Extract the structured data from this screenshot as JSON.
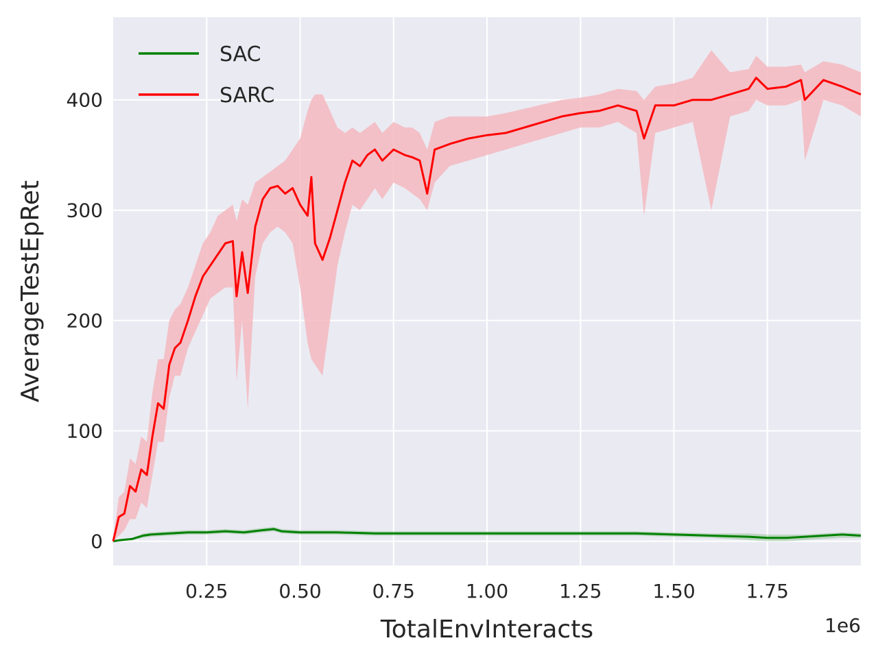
{
  "chart_data": {
    "type": "line",
    "title": "",
    "xlabel": "TotalEnvInteracts",
    "ylabel": "AverageTestEpRet",
    "x_scale_label": "1e6",
    "xlim": [
      0.0,
      2.0
    ],
    "ylim": [
      -22,
      475
    ],
    "x_ticks": [
      0.25,
      0.5,
      0.75,
      1.0,
      1.25,
      1.5,
      1.75
    ],
    "x_tick_labels": [
      "0.25",
      "0.50",
      "0.75",
      "1.00",
      "1.25",
      "1.50",
      "1.75"
    ],
    "y_ticks": [
      0,
      100,
      200,
      300,
      400
    ],
    "y_tick_labels": [
      "0",
      "100",
      "200",
      "300",
      "400"
    ],
    "grid": true,
    "legend_position": "top-left",
    "background_color": "#eaeaf2",
    "series": [
      {
        "name": "SAC",
        "color": "#008000",
        "x": [
          0.0,
          0.02,
          0.05,
          0.08,
          0.1,
          0.15,
          0.2,
          0.25,
          0.3,
          0.35,
          0.4,
          0.43,
          0.45,
          0.5,
          0.55,
          0.6,
          0.7,
          0.8,
          0.9,
          1.0,
          1.1,
          1.2,
          1.3,
          1.4,
          1.5,
          1.6,
          1.7,
          1.75,
          1.8,
          1.85,
          1.9,
          1.95,
          2.0
        ],
        "y": [
          0,
          1,
          2,
          5,
          6,
          7,
          8,
          8,
          9,
          8,
          10,
          11,
          9,
          8,
          8,
          8,
          7,
          7,
          7,
          7,
          7,
          7,
          7,
          7,
          6,
          5,
          4,
          3,
          3,
          4,
          5,
          6,
          5
        ],
        "band_low": [
          0,
          0,
          1,
          3,
          4,
          5,
          6,
          6,
          7,
          6,
          8,
          9,
          7,
          6,
          6,
          6,
          5,
          5,
          5,
          5,
          5,
          5,
          5,
          5,
          4,
          3,
          1,
          0,
          0,
          1,
          2,
          3,
          3
        ],
        "band_high": [
          1,
          2,
          3,
          7,
          8,
          9,
          10,
          10,
          11,
          10,
          12,
          13,
          11,
          10,
          10,
          10,
          9,
          9,
          9,
          9,
          9,
          9,
          9,
          9,
          8,
          7,
          7,
          6,
          6,
          6,
          7,
          8,
          7
        ]
      },
      {
        "name": "SARC",
        "color": "#ff0000",
        "band_color": "#f4b8c0",
        "x": [
          0.0,
          0.015,
          0.03,
          0.045,
          0.06,
          0.075,
          0.09,
          0.105,
          0.12,
          0.135,
          0.15,
          0.165,
          0.18,
          0.2,
          0.22,
          0.24,
          0.26,
          0.28,
          0.3,
          0.32,
          0.33,
          0.345,
          0.36,
          0.38,
          0.4,
          0.42,
          0.44,
          0.46,
          0.48,
          0.5,
          0.52,
          0.53,
          0.54,
          0.56,
          0.58,
          0.6,
          0.62,
          0.64,
          0.66,
          0.68,
          0.7,
          0.72,
          0.75,
          0.78,
          0.8,
          0.82,
          0.84,
          0.86,
          0.9,
          0.95,
          1.0,
          1.05,
          1.1,
          1.15,
          1.2,
          1.25,
          1.3,
          1.35,
          1.4,
          1.42,
          1.45,
          1.5,
          1.55,
          1.6,
          1.65,
          1.7,
          1.72,
          1.75,
          1.8,
          1.84,
          1.85,
          1.9,
          1.95,
          2.0
        ],
        "y": [
          0,
          22,
          25,
          50,
          45,
          65,
          60,
          95,
          125,
          120,
          160,
          175,
          180,
          200,
          222,
          240,
          250,
          260,
          270,
          272,
          222,
          262,
          225,
          285,
          310,
          320,
          322,
          315,
          320,
          305,
          295,
          330,
          270,
          255,
          275,
          300,
          325,
          345,
          340,
          350,
          355,
          345,
          355,
          350,
          348,
          345,
          315,
          355,
          360,
          365,
          368,
          370,
          375,
          380,
          385,
          388,
          390,
          395,
          390,
          365,
          395,
          395,
          400,
          400,
          405,
          410,
          420,
          410,
          412,
          418,
          400,
          418,
          412,
          405
        ],
        "band_low": [
          0,
          5,
          10,
          20,
          20,
          35,
          30,
          60,
          90,
          90,
          130,
          150,
          150,
          175,
          190,
          205,
          220,
          225,
          230,
          230,
          145,
          200,
          120,
          240,
          270,
          280,
          285,
          280,
          270,
          230,
          180,
          165,
          160,
          150,
          200,
          250,
          280,
          305,
          300,
          310,
          320,
          310,
          325,
          320,
          315,
          310,
          300,
          325,
          340,
          345,
          350,
          355,
          360,
          365,
          370,
          375,
          375,
          380,
          370,
          295,
          370,
          375,
          380,
          300,
          385,
          390,
          400,
          395,
          395,
          400,
          345,
          400,
          395,
          385
        ],
        "band_high": [
          2,
          40,
          45,
          75,
          70,
          95,
          90,
          135,
          165,
          165,
          200,
          210,
          215,
          230,
          250,
          270,
          280,
          295,
          300,
          305,
          290,
          310,
          305,
          325,
          330,
          335,
          340,
          345,
          355,
          365,
          390,
          400,
          405,
          405,
          390,
          375,
          370,
          375,
          370,
          375,
          380,
          370,
          380,
          375,
          375,
          370,
          355,
          380,
          385,
          385,
          385,
          388,
          392,
          396,
          400,
          402,
          405,
          410,
          408,
          400,
          412,
          415,
          420,
          445,
          425,
          428,
          440,
          430,
          430,
          432,
          425,
          435,
          432,
          425
        ]
      }
    ]
  }
}
